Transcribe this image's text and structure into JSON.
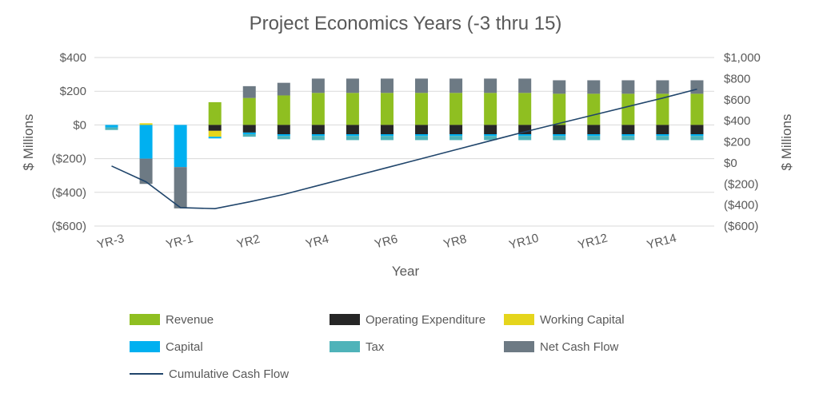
{
  "chart_data": {
    "type": "bar",
    "subtype": "stacked-bars-with-cumulative-line",
    "title": "Project Economics Years (-3 thru 15)",
    "xlabel": "Year",
    "ylabel_left": "$ Millions",
    "ylabel_right": "$ Millions",
    "grid": true,
    "gridline_color": "#d9d9d9",
    "text_color": "#595959",
    "legend_position": "bottom",
    "x_label_every": 2,
    "categories": [
      "YR-3",
      "YR-2",
      "YR-1",
      "YR1",
      "YR2",
      "YR3",
      "YR4",
      "YR5",
      "YR6",
      "YR7",
      "YR8",
      "YR9",
      "YR10",
      "YR11",
      "YR12",
      "YR13",
      "YR14",
      "YR15"
    ],
    "left_axis": {
      "min": -600,
      "max": 400,
      "ticks": [
        {
          "value": 400,
          "label": "$400"
        },
        {
          "value": 200,
          "label": "$200"
        },
        {
          "value": 0,
          "label": "$0"
        },
        {
          "value": -200,
          "label": "($200)"
        },
        {
          "value": -400,
          "label": "($400)"
        },
        {
          "value": -600,
          "label": "($600)"
        }
      ]
    },
    "right_axis": {
      "min": -600,
      "max": 1000,
      "ticks": [
        {
          "value": 1000,
          "label": "$1,000"
        },
        {
          "value": 800,
          "label": "$800"
        },
        {
          "value": 600,
          "label": "$600"
        },
        {
          "value": 400,
          "label": "$400"
        },
        {
          "value": 200,
          "label": "$200"
        },
        {
          "value": 0,
          "label": "$0"
        },
        {
          "value": -200,
          "label": "($200)"
        },
        {
          "value": -400,
          "label": "($400)"
        },
        {
          "value": -600,
          "label": "($600)"
        }
      ]
    },
    "series": [
      {
        "name": "Revenue",
        "type": "bar",
        "color": "#8fbf21",
        "values": [
          0,
          0,
          0,
          135,
          160,
          175,
          190,
          190,
          190,
          190,
          190,
          190,
          190,
          185,
          185,
          185,
          185,
          185
        ]
      },
      {
        "name": "Operating Expenditure",
        "type": "bar",
        "color": "#262626",
        "values": [
          0,
          0,
          0,
          -35,
          -45,
          -55,
          -55,
          -55,
          -55,
          -55,
          -55,
          -55,
          -55,
          -55,
          -55,
          -55,
          -55,
          -55
        ]
      },
      {
        "name": "Working Capital",
        "type": "bar",
        "color": "#e5d51c",
        "values": [
          0,
          10,
          0,
          -35,
          0,
          0,
          0,
          0,
          0,
          0,
          0,
          0,
          0,
          0,
          0,
          0,
          0,
          0
        ]
      },
      {
        "name": "Capital",
        "type": "bar",
        "color": "#00b0f0",
        "values": [
          -15,
          -200,
          -250,
          -10,
          -10,
          -10,
          -10,
          -10,
          -10,
          -10,
          -10,
          -10,
          -10,
          -10,
          -10,
          -10,
          -10,
          -10
        ]
      },
      {
        "name": "Tax",
        "type": "bar",
        "color": "#4fb3b9",
        "values": [
          -15,
          0,
          0,
          0,
          -15,
          -20,
          -25,
          -25,
          -25,
          -25,
          -25,
          -25,
          -25,
          -25,
          -25,
          -25,
          -25,
          -25
        ]
      },
      {
        "name": "Net Cash Flow",
        "type": "bar",
        "color": "#6d7a84",
        "values": [
          0,
          -150,
          -245,
          0,
          70,
          75,
          85,
          85,
          85,
          85,
          85,
          85,
          85,
          80,
          80,
          80,
          80,
          80
        ]
      },
      {
        "name": "Cumulative Cash Flow",
        "type": "line",
        "axis": "right",
        "color": "#20456b",
        "values": [
          -30,
          -180,
          -425,
          -435,
          -370,
          -300,
          -215,
          -130,
          -45,
          40,
          125,
          210,
          295,
          375,
          455,
          535,
          615,
          700
        ]
      }
    ]
  }
}
